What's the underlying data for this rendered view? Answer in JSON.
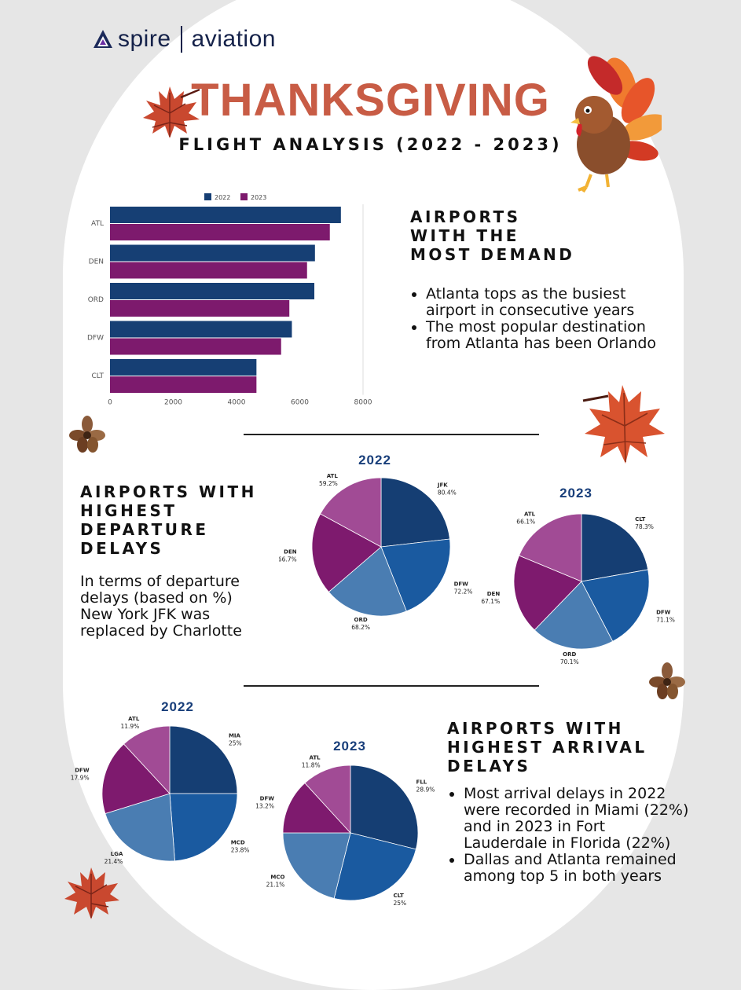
{
  "brand": {
    "name": "spire",
    "product": "aviation"
  },
  "title": "THANKSGIVING",
  "subtitle": "FLIGHT ANALYSIS (2022 - 2023)",
  "colors": {
    "title": "#c85c45",
    "s2022": "#163f74",
    "s2023": "#7d1a6d",
    "pie": [
      "#153e73",
      "#1a5aa0",
      "#4a7db2",
      "#7e1a6e",
      "#a14b95"
    ],
    "pieTitle": "#183e7a"
  },
  "section1": {
    "heading": [
      "AIRPORTS",
      "WITH THE",
      "MOST DEMAND"
    ],
    "bullets": [
      "Atlanta tops as the busiest airport in consecutive years",
      "The most popular destination from Atlanta has been Orlando"
    ]
  },
  "section2": {
    "heading": [
      "AIRPORTS WITH",
      "HIGHEST",
      "DEPARTURE",
      "DELAYS"
    ],
    "text": "In terms of departure delays (based on %) New York JFK was replaced by Charlotte"
  },
  "section3": {
    "heading": [
      "AIRPORTS WITH",
      "HIGHEST ARRIVAL",
      "DELAYS"
    ],
    "bullets": [
      "Most arrival delays in 2022 were recorded in Miami (22%) and in 2023 in Fort Lauderdale in Florida (22%)",
      "Dallas and Atlanta remained among top 5 in both years"
    ]
  },
  "chart_data": [
    {
      "type": "bar",
      "orientation": "horizontal",
      "categories": [
        "ATL",
        "DEN",
        "ORD",
        "DFW",
        "CLT"
      ],
      "series": [
        {
          "name": "2022",
          "values": [
            7300,
            6480,
            6460,
            5750,
            4630
          ]
        },
        {
          "name": "2023",
          "values": [
            6950,
            6230,
            5670,
            5410,
            4630
          ]
        }
      ],
      "xlim": [
        0,
        8000
      ],
      "xticks": [
        0,
        2000,
        4000,
        6000,
        8000
      ],
      "grid": true,
      "legend": "top"
    },
    {
      "type": "pie",
      "title": "2022",
      "labels": [
        "JFK",
        "DFW",
        "ORD",
        "DEN",
        "ATL"
      ],
      "values": [
        80.4,
        72.2,
        68.2,
        66.7,
        59.2
      ],
      "value_labels": [
        "80.4%",
        "72.2%",
        "68.2%",
        "66.7%",
        "59.2%"
      ]
    },
    {
      "type": "pie",
      "title": "2023",
      "labels": [
        "CLT",
        "DFW",
        "ORD",
        "DEN",
        "ATL"
      ],
      "values": [
        78.3,
        71.1,
        70.1,
        67.1,
        66.1
      ],
      "value_labels": [
        "78.3%",
        "71.1%",
        "70.1%",
        "67.1%",
        "66.1%"
      ]
    },
    {
      "type": "pie",
      "title": "2022",
      "labels": [
        "MIA",
        "MCD",
        "LGA",
        "DFW",
        "ATL"
      ],
      "values": [
        25,
        23.8,
        21.4,
        17.9,
        11.9
      ],
      "value_labels": [
        "25%",
        "23.8%",
        "21.4%",
        "17.9%",
        "11.9%"
      ]
    },
    {
      "type": "pie",
      "title": "2023",
      "labels": [
        "FLL",
        "CLT",
        "MCO",
        "DFW",
        "ATL"
      ],
      "values": [
        28.9,
        25,
        21.1,
        13.2,
        11.8
      ],
      "value_labels": [
        "28.9%",
        "25%",
        "21.1%",
        "13.2%",
        "11.8%"
      ]
    }
  ]
}
